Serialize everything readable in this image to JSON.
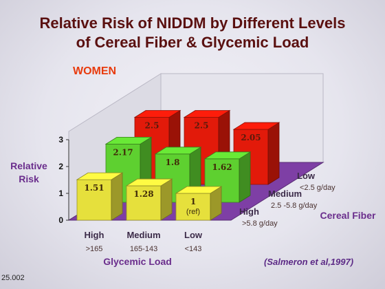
{
  "slide": {
    "title_line1": "Relative Risk of NIDDM by Different Levels",
    "title_line2": "of Cereal Fiber & Glycemic Load",
    "subtitle": "WOMEN",
    "y_axis_label_line1": "Relative",
    "y_axis_label_line2": "Risk",
    "citation": "(Salmeron et al,1997)",
    "slide_number": "25.002"
  },
  "chart_data": {
    "type": "bar",
    "title": "Relative Risk of NIDDM by Different Levels of Cereal Fiber & Glycemic Load",
    "subtitle": "WOMEN",
    "ylabel": "Relative Risk",
    "ylim": [
      0,
      3
    ],
    "yticks": [
      "0",
      "1",
      "2",
      "3"
    ],
    "xlabel": "Glycemic Load",
    "zlabel": "Cereal Fiber",
    "categories": [
      {
        "name": "High",
        "range": ">165"
      },
      {
        "name": "Medium",
        "range": "165-143"
      },
      {
        "name": "Low",
        "range": "<143"
      }
    ],
    "fiber_levels": [
      {
        "name": "High",
        "range": ">5.8 g/day"
      },
      {
        "name": "Medium",
        "range": "2.5 -5.8 g/day"
      },
      {
        "name": "Low",
        "range": "<2.5 g/day"
      }
    ],
    "series": [
      {
        "values": [
          1.51,
          1.28,
          1
        ],
        "labels": [
          "1.51",
          "1.28",
          "1"
        ],
        "notes": [
          "",
          "",
          "(ref)"
        ],
        "color": "#e6e03c"
      },
      {
        "values": [
          2.17,
          1.8,
          1.62
        ],
        "labels": [
          "2.17",
          "1.8",
          "1.62"
        ],
        "notes": [
          "",
          "",
          ""
        ],
        "color": "#5ed030"
      },
      {
        "values": [
          2.5,
          2.5,
          2.05
        ],
        "labels": [
          "2.5",
          "2.5",
          "2.05"
        ],
        "notes": [
          "",
          "",
          ""
        ],
        "color": "#e21a0a"
      }
    ],
    "floor_color": "#7e3fa5",
    "grid": false,
    "legend": "none"
  }
}
